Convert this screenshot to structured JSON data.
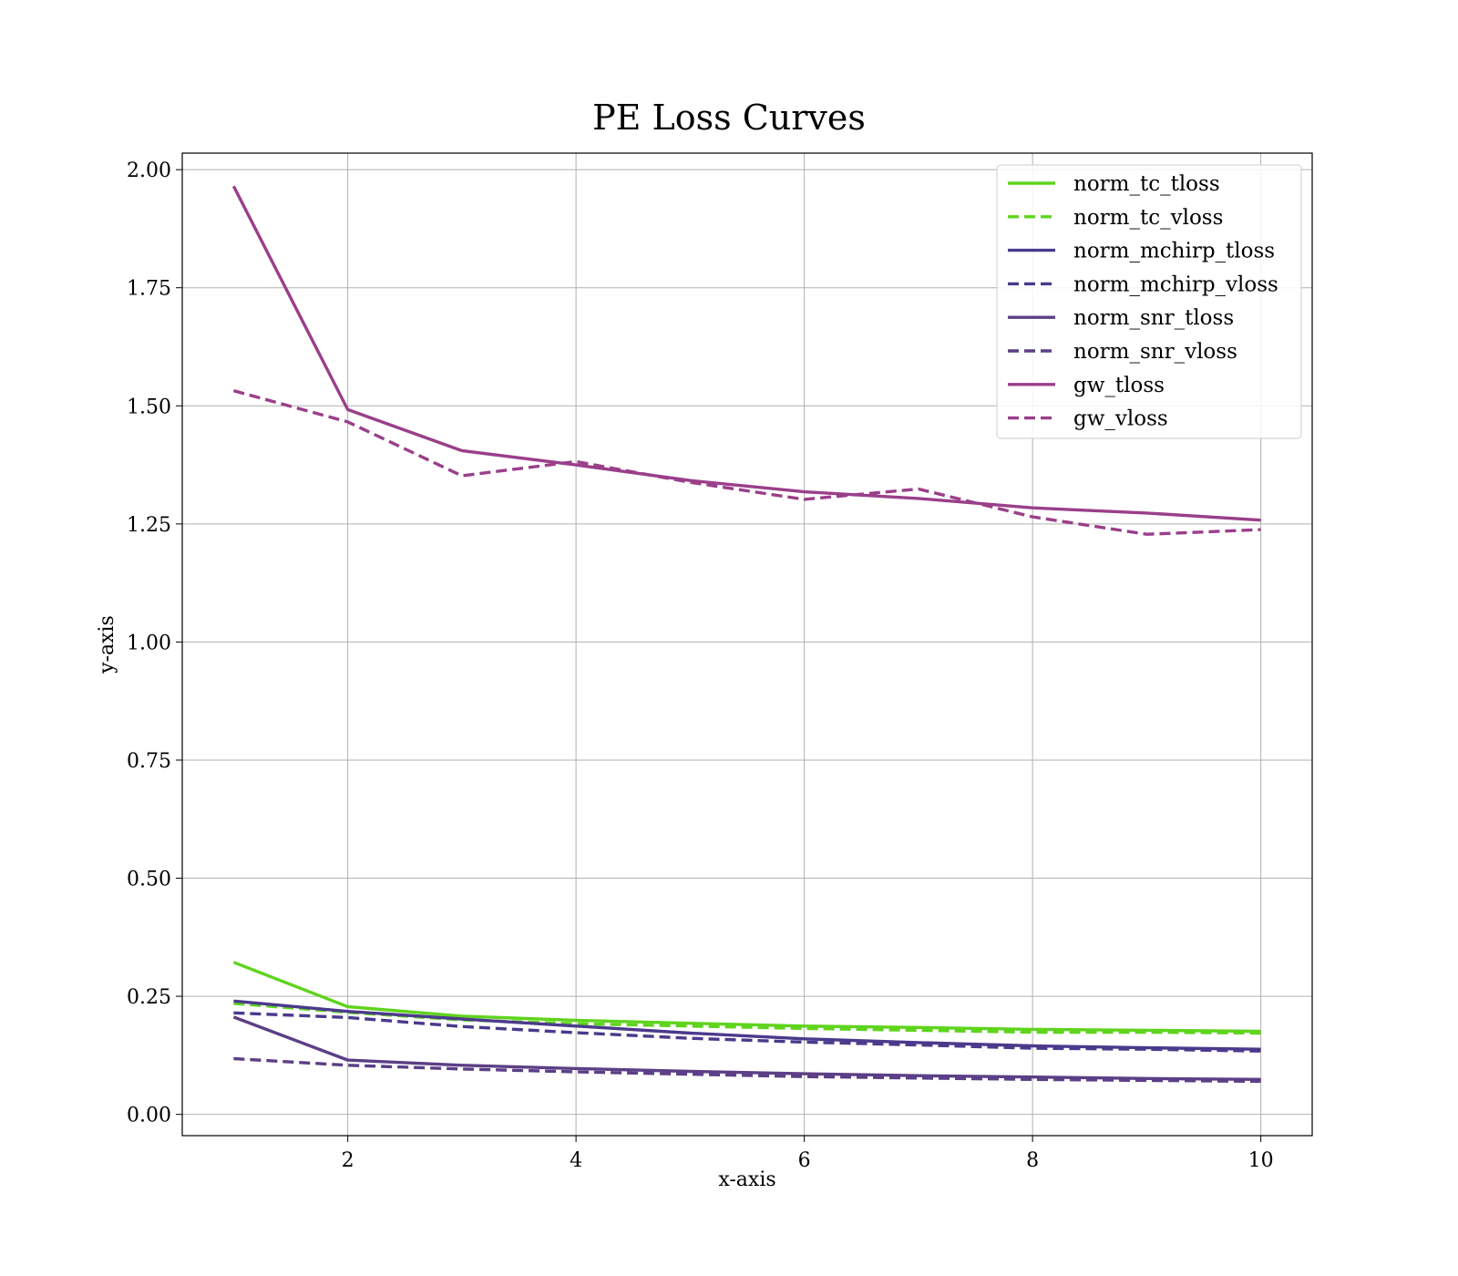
{
  "chart_data": {
    "type": "line",
    "title": "PE Loss Curves",
    "xlabel": "x-axis",
    "ylabel": "y-axis",
    "xlim": [
      0.55,
      10.45
    ],
    "ylim": [
      -0.045,
      2.035
    ],
    "xticks": [
      2,
      4,
      6,
      8,
      10
    ],
    "yticks": [
      0.0,
      0.25,
      0.5,
      0.75,
      1.0,
      1.25,
      1.5,
      1.75,
      2.0
    ],
    "xtick_labels": [
      "2",
      "4",
      "6",
      "8",
      "10"
    ],
    "ytick_labels": [
      "0.00",
      "0.25",
      "0.50",
      "0.75",
      "1.00",
      "1.25",
      "1.50",
      "1.75",
      "2.00"
    ],
    "grid": true,
    "legend_position": "top-right",
    "x": [
      1,
      2,
      3,
      4,
      5,
      6,
      7,
      8,
      9,
      10
    ],
    "series": [
      {
        "name": "norm_tc_tloss",
        "color": "#5fd41d",
        "dash": "solid",
        "values": [
          0.322,
          0.228,
          0.208,
          0.199,
          0.193,
          0.187,
          0.184,
          0.18,
          0.178,
          0.176
        ]
      },
      {
        "name": "norm_tc_vloss",
        "color": "#5fd41d",
        "dash": "dashed",
        "values": [
          0.235,
          0.216,
          0.2,
          0.192,
          0.187,
          0.182,
          0.178,
          0.174,
          0.174,
          0.172
        ]
      },
      {
        "name": "norm_mchirp_tloss",
        "color": "#4b3a8c",
        "dash": "solid",
        "values": [
          0.24,
          0.218,
          0.202,
          0.187,
          0.172,
          0.16,
          0.152,
          0.145,
          0.141,
          0.138
        ]
      },
      {
        "name": "norm_mchirp_vloss",
        "color": "#4b3a8c",
        "dash": "dashed",
        "values": [
          0.215,
          0.205,
          0.186,
          0.173,
          0.161,
          0.153,
          0.147,
          0.14,
          0.138,
          0.134
        ]
      },
      {
        "name": "norm_snr_tloss",
        "color": "#5c3f86",
        "dash": "solid",
        "values": [
          0.206,
          0.115,
          0.104,
          0.097,
          0.091,
          0.086,
          0.082,
          0.079,
          0.076,
          0.074
        ]
      },
      {
        "name": "norm_snr_vloss",
        "color": "#5c3f86",
        "dash": "dashed",
        "values": [
          0.118,
          0.104,
          0.096,
          0.09,
          0.085,
          0.08,
          0.077,
          0.074,
          0.072,
          0.07
        ]
      },
      {
        "name": "gw_tloss",
        "color": "#9a3f8a",
        "dash": "solid",
        "values": [
          1.965,
          1.492,
          1.405,
          1.375,
          1.342,
          1.318,
          1.304,
          1.284,
          1.273,
          1.258
        ]
      },
      {
        "name": "gw_vloss",
        "color": "#9a3f8a",
        "dash": "dashed",
        "values": [
          1.532,
          1.466,
          1.352,
          1.382,
          1.338,
          1.302,
          1.324,
          1.265,
          1.228,
          1.238
        ]
      }
    ]
  }
}
